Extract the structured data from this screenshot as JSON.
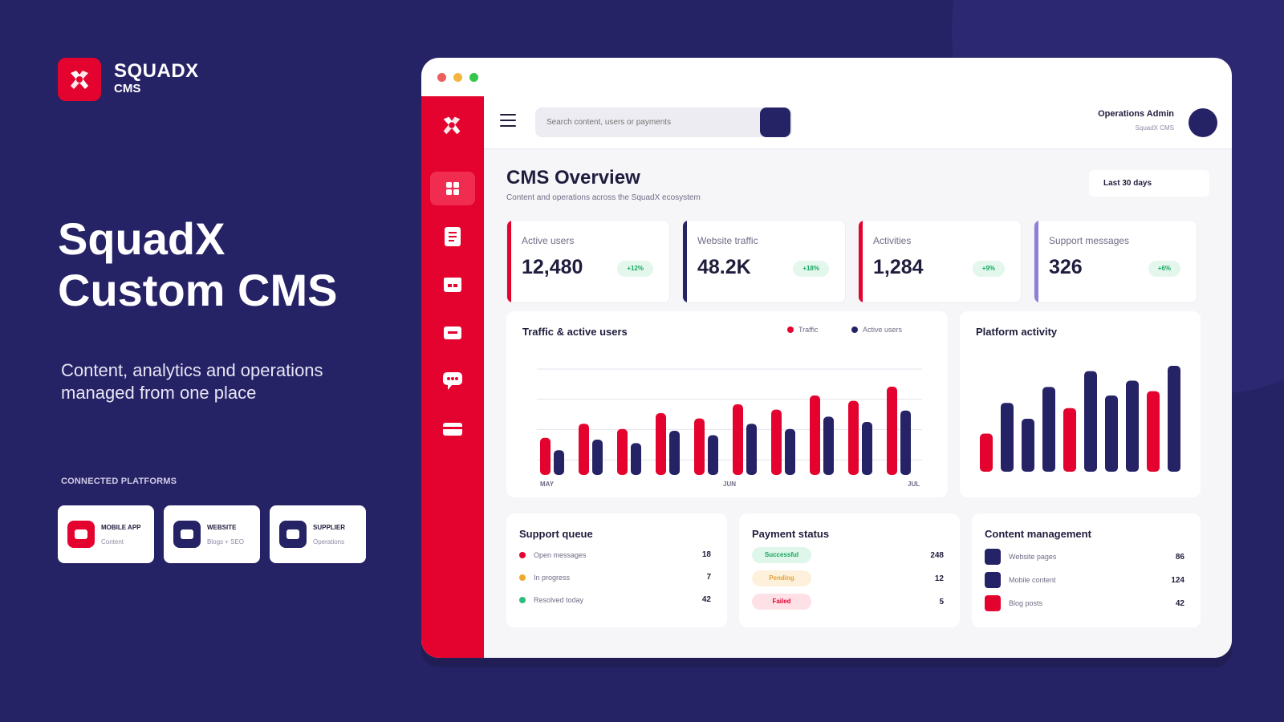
{
  "brand": {
    "name": "SQUADX",
    "sub": "CMS"
  },
  "hero": {
    "title": "SquadX Custom CMS",
    "subtitle": "Content, analytics and operations managed from one place"
  },
  "platforms": {
    "label": "CONNECTED PLATFORMS",
    "items": [
      {
        "title": "MOBILE APP",
        "sub": "Content",
        "color": "#e4032e"
      },
      {
        "title": "WEBSITE",
        "sub": "Blogs + SEO",
        "color": "#262266"
      },
      {
        "title": "SUPPLIER",
        "sub": "Operations",
        "color": "#262266"
      }
    ]
  },
  "window": {
    "dots": [
      "#ec5f5a",
      "#f3b53d",
      "#34c74b"
    ],
    "sidebar_icons": [
      "dashboard-icon",
      "document-icon",
      "calendar-icon",
      "inbox-icon",
      "chat-icon",
      "credit-card-icon"
    ]
  },
  "topbar": {
    "search_placeholder": "Search content, users or payments",
    "user_name": "Operations Admin",
    "user_role": "SquadX CMS"
  },
  "overview": {
    "title": "CMS Overview",
    "subtitle": "Content and operations across the SquadX ecosystem",
    "range": "Last 30 days"
  },
  "kpis": [
    {
      "label": "Active users",
      "value": "12,480",
      "change": "+12%",
      "color": "#e4032e"
    },
    {
      "label": "Website traffic",
      "value": "48.2K",
      "change": "+18%",
      "color": "#262266"
    },
    {
      "label": "Activities",
      "value": "1,284",
      "change": "+9%",
      "color": "#e4032e"
    },
    {
      "label": "Support messages",
      "value": "326",
      "change": "+6%",
      "color": "#8f7fd6"
    }
  ],
  "traffic_chart": {
    "title": "Traffic & active users",
    "legend": [
      {
        "name": "Traffic",
        "color": "#e4032e"
      },
      {
        "name": "Active users",
        "color": "#262266"
      }
    ]
  },
  "activity_chart": {
    "title": "Platform activity"
  },
  "chart_data": [
    {
      "type": "bar",
      "title": "Traffic & active users",
      "x_tick_labels": [
        "MAY",
        "JUN",
        "JUL"
      ],
      "categories_count": 10,
      "ylim": [
        0,
        120
      ],
      "grid": true,
      "series": [
        {
          "name": "Traffic",
          "color": "#e4032e",
          "values": [
            42,
            58,
            52,
            70,
            64,
            80,
            74,
            90,
            84,
            100
          ]
        },
        {
          "name": "Active users",
          "color": "#262266",
          "values": [
            28,
            40,
            36,
            50,
            45,
            58,
            52,
            66,
            60,
            73
          ]
        }
      ]
    },
    {
      "type": "bar",
      "title": "Platform activity",
      "ylim": [
        0,
        100
      ],
      "values": [
        36,
        65,
        50,
        80,
        60,
        95,
        72,
        86,
        76,
        100
      ],
      "colors": [
        "#e4032e",
        "#262266",
        "#262266",
        "#262266",
        "#e4032e",
        "#262266",
        "#262266",
        "#262266",
        "#e4032e",
        "#262266"
      ]
    }
  ],
  "support_queue": {
    "title": "Support queue",
    "rows": [
      {
        "label": "Open messages",
        "value": "18",
        "color": "#e4032e"
      },
      {
        "label": "In progress",
        "value": "7",
        "color": "#f0a92f"
      },
      {
        "label": "Resolved today",
        "value": "42",
        "color": "#2dbd78"
      }
    ]
  },
  "payment_status": {
    "title": "Payment status",
    "rows": [
      {
        "label": "Successful",
        "value": "248",
        "bg": "#dff6ea",
        "fg": "#17a560"
      },
      {
        "label": "Pending",
        "value": "12",
        "bg": "#fdf1dc",
        "fg": "#e8a22b"
      },
      {
        "label": "Failed",
        "value": "5",
        "bg": "#fde1e7",
        "fg": "#e4032e"
      }
    ]
  },
  "content_management": {
    "title": "Content management",
    "rows": [
      {
        "label": "Website pages",
        "value": "86",
        "color": "#262266"
      },
      {
        "label": "Mobile content",
        "value": "124",
        "color": "#262266"
      },
      {
        "label": "Blog posts",
        "value": "42",
        "color": "#e4032e"
      }
    ]
  }
}
